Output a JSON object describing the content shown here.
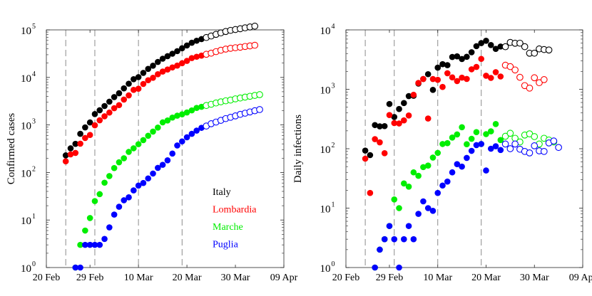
{
  "chart_data": [
    {
      "type": "scatter",
      "scale": "log",
      "title": "",
      "xlabel": "",
      "ylabel": "Confirmed cases",
      "xlim": [
        20,
        69
      ],
      "ylim_exp": [
        0,
        5
      ],
      "x_ticks": [
        {
          "day": 20,
          "label": "20 Feb"
        },
        {
          "day": 29,
          "label": "29 Feb"
        },
        {
          "day": 39,
          "label": "10 Mar"
        },
        {
          "day": 49,
          "label": "20 Mar"
        },
        {
          "day": 59,
          "label": "30 Mar"
        },
        {
          "day": 69,
          "label": "09 Apr"
        }
      ],
      "y_ticks": [
        {
          "exp": 0,
          "base": "10",
          "power": "0"
        },
        {
          "exp": 1,
          "base": "10",
          "power": "1"
        },
        {
          "exp": 2,
          "base": "10",
          "power": "2"
        },
        {
          "exp": 3,
          "base": "10",
          "power": "3"
        },
        {
          "exp": 4,
          "base": "10",
          "power": "4"
        },
        {
          "exp": 5,
          "base": "10",
          "power": "5"
        }
      ],
      "vlines_day": [
        24,
        30,
        39,
        48
      ],
      "legend": {
        "location": "lower-right",
        "entries": [
          {
            "label": "Italy",
            "color": "#000000"
          },
          {
            "label": "Lombardia",
            "color": "#ff0000"
          },
          {
            "label": "Marche",
            "color": "#00ee00"
          },
          {
            "label": "Puglia",
            "color": "#0000ff"
          }
        ]
      },
      "series": [
        {
          "name": "Italy",
          "color": "#000000",
          "x_start": 24,
          "filled_count": 29,
          "values": [
            229,
            322,
            400,
            650,
            888,
            1128,
            1694,
            2036,
            2502,
            3089,
            3858,
            4636,
            5883,
            7375,
            9172,
            10149,
            12462,
            15113,
            17660,
            21157,
            24747,
            27980,
            31506,
            35713,
            41035,
            47021,
            53578,
            59138,
            63927,
            69176,
            74386,
            80539,
            86498,
            92472,
            97689,
            101739,
            105792,
            110574,
            115242,
            119827
          ]
        },
        {
          "name": "Lombardia",
          "color": "#ff0000",
          "x_start": 24,
          "filled_count": 29,
          "values": [
            172,
            240,
            258,
            403,
            531,
            615,
            984,
            1254,
            1520,
            1820,
            2251,
            2612,
            3420,
            4189,
            5469,
            5791,
            7280,
            8725,
            9820,
            11685,
            13272,
            14649,
            16220,
            17713,
            19884,
            22264,
            25515,
            27206,
            28761,
            30703,
            32346,
            34889,
            37298,
            39415,
            41007,
            42161,
            43208,
            44773,
            46065,
            47520
          ]
        },
        {
          "name": "Marche",
          "color": "#00ee00",
          "x_start": 26,
          "filled_count": 27,
          "values": [
            1,
            3,
            6,
            11,
            25,
            35,
            61,
            84,
            124,
            164,
            199,
            271,
            323,
            394,
            479,
            592,
            725,
            881,
            1133,
            1242,
            1429,
            1569,
            1671,
            1831,
            2025,
            2283,
            2407,
            2569,
            2722,
            2900,
            3066,
            3219,
            3342,
            3540,
            3690,
            3851,
            4012,
            4180,
            4340
          ]
        },
        {
          "name": "Puglia",
          "color": "#0000ff",
          "x_start": 26,
          "filled_count": 27,
          "values": [
            1,
            1,
            3,
            3,
            3,
            3,
            4,
            7,
            13,
            19,
            26,
            30,
            42,
            53,
            60,
            75,
            95,
            125,
            145,
            180,
            250,
            370,
            450,
            550,
            650,
            760,
            870,
            950,
            1060,
            1150,
            1250,
            1360,
            1450,
            1550,
            1670,
            1770,
            1880,
            1990,
            2110
          ]
        }
      ]
    },
    {
      "type": "scatter",
      "scale": "log",
      "title": "",
      "xlabel": "",
      "ylabel": "Daily infections",
      "xlim": [
        20,
        69
      ],
      "ylim_exp": [
        0,
        4
      ],
      "x_ticks": [
        {
          "day": 20,
          "label": "20 Feb"
        },
        {
          "day": 29,
          "label": "29 Feb"
        },
        {
          "day": 39,
          "label": "10 Mar"
        },
        {
          "day": 49,
          "label": "20 Mar"
        },
        {
          "day": 59,
          "label": "30 Mar"
        },
        {
          "day": 69,
          "label": "09 Apr"
        }
      ],
      "y_ticks": [
        {
          "exp": 0,
          "base": "10",
          "power": "0"
        },
        {
          "exp": 1,
          "base": "10",
          "power": "1"
        },
        {
          "exp": 2,
          "base": "10",
          "power": "2"
        },
        {
          "exp": 3,
          "base": "10",
          "power": "3"
        },
        {
          "exp": 4,
          "base": "10",
          "power": "4"
        }
      ],
      "vlines_day": [
        24,
        30,
        39,
        48
      ],
      "series": [
        {
          "name": "Italy",
          "color": "#000000",
          "x_start": 24,
          "filled_count": 29,
          "values": [
            93,
            78,
            250,
            238,
            240,
            566,
            342,
            466,
            587,
            769,
            778,
            1247,
            1492,
            1797,
            977,
            2313,
            2651,
            2547,
            3497,
            3590,
            3233,
            3526,
            4207,
            5322,
            5986,
            6557,
            5560,
            4789,
            5249,
            5210,
            6153,
            5959,
            5974,
            5217,
            4050,
            4053,
            4782,
            4668,
            4585
          ]
        },
        {
          "name": "Lombardia",
          "color": "#ff0000",
          "x_start": 24,
          "filled_count": 29,
          "values": [
            68,
            18,
            145,
            128,
            84,
            369,
            270,
            266,
            300,
            362,
            808,
            1280,
            1489,
            322,
            1489,
            1445,
            1095,
            1865,
            1587,
            1377,
            1571,
            1493,
            2171,
            2380,
            3251,
            1691,
            1555,
            1942,
            1643,
            2543,
            2409,
            2117,
            1592,
            1154,
            1047,
            1565,
            1292,
            1455
          ]
        },
        {
          "name": "Marche",
          "color": "#00ee00",
          "x_start": 26,
          "filled_count": 27,
          "values": [
            1,
            2,
            3,
            5,
            14,
            10,
            26,
            23,
            40,
            35,
            49,
            52,
            71,
            85,
            120,
            124,
            154,
            174,
            230,
            119,
            147,
            190,
            120,
            176,
            196,
            260,
            140,
            162,
            182,
            150,
            130,
            170,
            178,
            160,
            120,
            150,
            140,
            130
          ]
        },
        {
          "name": "Puglia",
          "color": "#0000ff",
          "x_start": 26,
          "filled_count": 27,
          "values": [
            1,
            2,
            3,
            5,
            3,
            1,
            3,
            5,
            3,
            8,
            13,
            10,
            9,
            18,
            24,
            28,
            40,
            55,
            50,
            70,
            92,
            115,
            120,
            43,
            100,
            110,
            95,
            120,
            100,
            120,
            98,
            90,
            85,
            112,
            92,
            90,
            125,
            135,
            105
          ]
        }
      ]
    }
  ]
}
